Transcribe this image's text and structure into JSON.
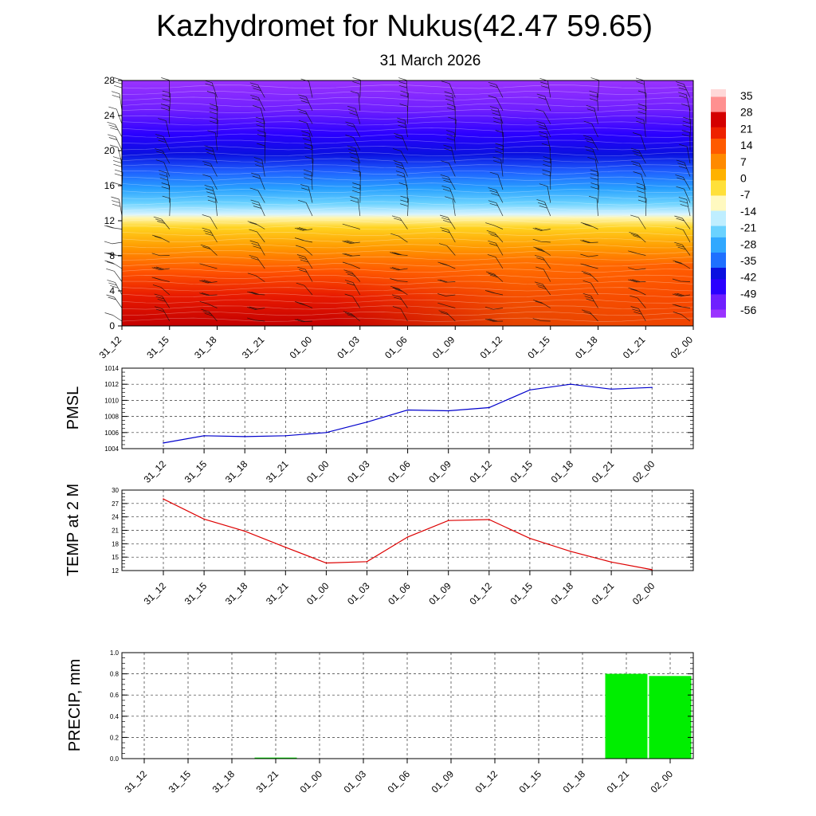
{
  "title": "Kazhydromet for Nukus(42.47 59.65)",
  "subtitle": "31 March 2026",
  "colors": {
    "pmsl_line": "#0000cc",
    "temp_line": "#dd0000",
    "precip_bar": "#00ee00",
    "colormap": [
      "#9a33ff",
      "#6f1fff",
      "#2a00ff",
      "#0a10e0",
      "#1f70ff",
      "#30a8ff",
      "#6ad2ff",
      "#bfeeff",
      "#fff9c0",
      "#ffe03a",
      "#ffb200",
      "#ff8a00",
      "#ff5a00",
      "#ee2200",
      "#d40000",
      "#ff9090",
      "#ffd8d8"
    ]
  },
  "chart_data": [
    {
      "type": "heatmap",
      "name": "vertical-profile",
      "x": [
        "31_12",
        "31_15",
        "31_18",
        "31_21",
        "01_00",
        "01_03",
        "01_06",
        "01_09",
        "01_12",
        "01_15",
        "01_18",
        "01_21",
        "02_00"
      ],
      "ylim": [
        0,
        28
      ],
      "yticks": [
        "0",
        "4",
        "8",
        "12",
        "16",
        "20",
        "24",
        "28"
      ],
      "colorbar_labels": [
        "35",
        "28",
        "21",
        "14",
        "7",
        "0",
        "-7",
        "-14",
        "-21",
        "-28",
        "-35",
        "-42",
        "-49",
        "-56"
      ],
      "colorbar_range": [
        -63,
        42
      ],
      "has_wind_barbs": true
    },
    {
      "type": "line",
      "name": "pmsl",
      "ylabel": "PMSL",
      "x": [
        "31_12",
        "31_15",
        "31_18",
        "31_21",
        "01_00",
        "01_03",
        "01_06",
        "01_09",
        "01_12",
        "01_15",
        "01_18",
        "01_21",
        "02_00"
      ],
      "values": [
        1004.7,
        1005.6,
        1005.5,
        1005.6,
        1006.0,
        1007.3,
        1008.8,
        1008.7,
        1009.1,
        1011.3,
        1012.0,
        1011.4,
        1011.6
      ],
      "ylim": [
        1004,
        1014
      ],
      "yticks": [
        "1004",
        "1006",
        "1008",
        "1010",
        "1012",
        "1014"
      ],
      "grid": true
    },
    {
      "type": "line",
      "name": "temp-2m",
      "ylabel": "TEMP at 2 M",
      "x": [
        "31_12",
        "31_15",
        "31_18",
        "31_21",
        "01_00",
        "01_03",
        "01_06",
        "01_09",
        "01_12",
        "01_15",
        "01_18",
        "01_21",
        "02_00"
      ],
      "values": [
        28.0,
        23.5,
        20.8,
        17.2,
        13.7,
        14.0,
        19.5,
        23.2,
        23.4,
        19.2,
        16.3,
        13.9,
        12.2
      ],
      "ylim": [
        12,
        30
      ],
      "yticks": [
        "12",
        "15",
        "18",
        "21",
        "24",
        "27",
        "30"
      ],
      "grid": true
    },
    {
      "type": "bar",
      "name": "precip",
      "ylabel": "PRECIP, mm",
      "categories": [
        "31_12",
        "31_15",
        "31_18",
        "31_21",
        "01_00",
        "01_03",
        "01_06",
        "01_09",
        "01_12",
        "01_15",
        "01_18",
        "01_21",
        "02_00"
      ],
      "values": [
        0,
        0,
        0,
        0.01,
        0,
        0,
        0,
        0,
        0,
        0,
        0,
        0.8,
        0.78
      ],
      "ylim": [
        0,
        1.0
      ],
      "yticks": [
        "0.0",
        "0.2",
        "0.4",
        "0.6",
        "0.8",
        "1.0"
      ],
      "grid": true
    }
  ]
}
